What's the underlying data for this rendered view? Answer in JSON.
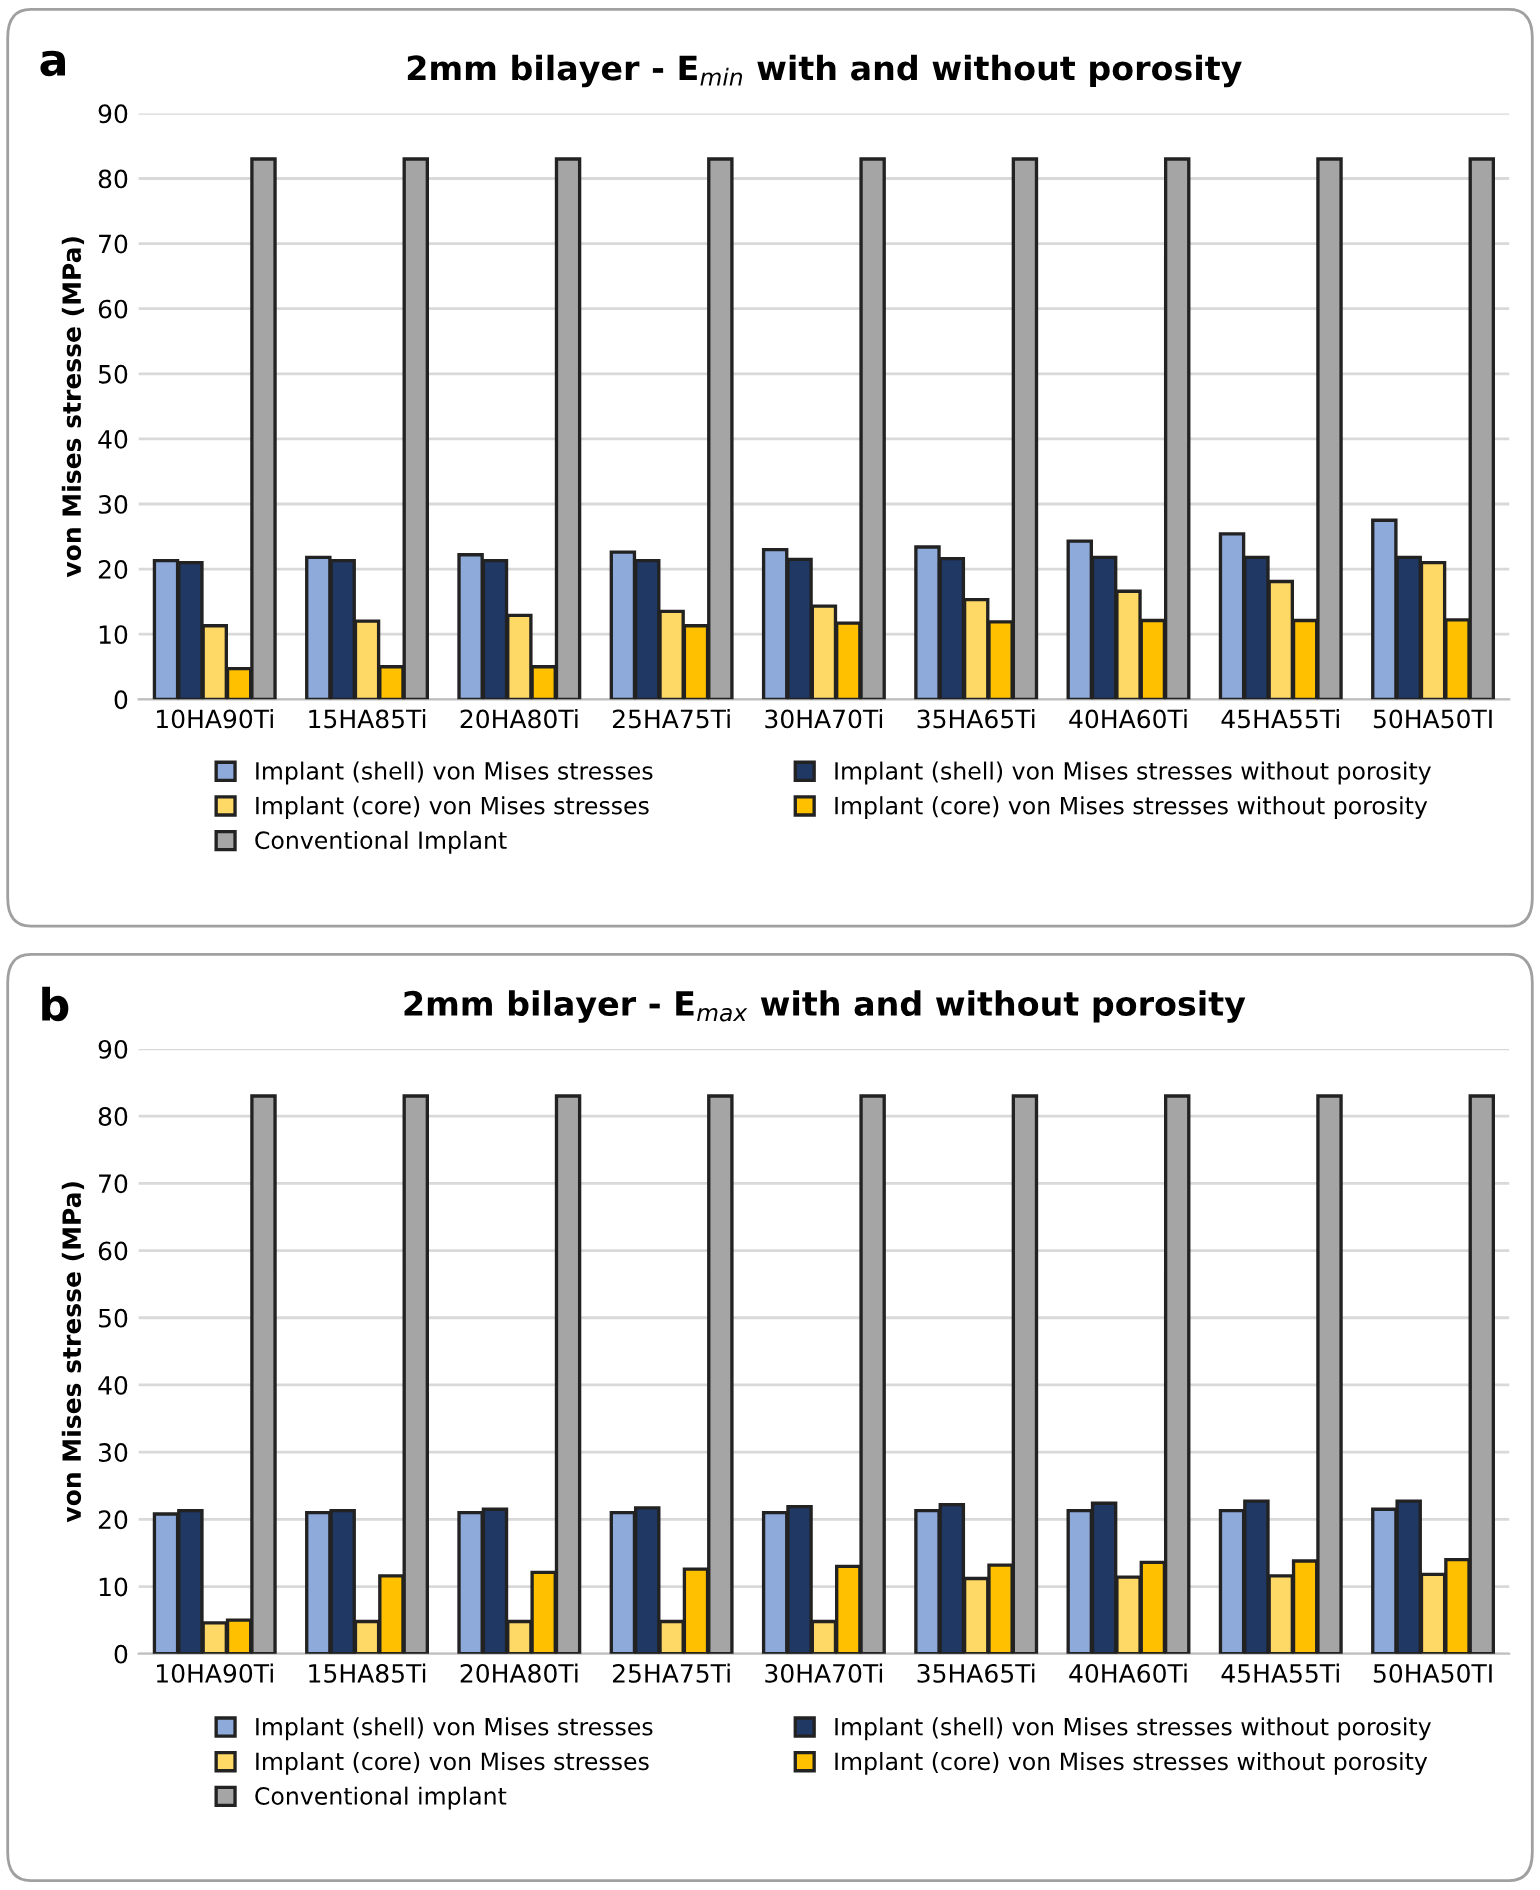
{
  "chart_data": [
    {
      "type": "bar",
      "title": "2mm bilayer - E$_{min}$ with and without porosity",
      "ylabel": "von Mises stresse (MPa)",
      "annotations": [
        "a"
      ],
      "categories": [
        "10HA90Ti",
        "15HA85Ti",
        "20HA80Ti",
        "25HA75Ti",
        "30HA70Ti",
        "35HA65Ti",
        "40HA60Ti",
        "45HA55Ti",
        "50HA50TI"
      ],
      "series": [
        {
          "name": "Implant (shell) von Mises stresses",
          "color": "#8eaadb",
          "values": [
            21.3,
            21.8,
            22.2,
            22.6,
            23.0,
            23.4,
            24.3,
            25.4,
            27.5
          ]
        },
        {
          "name": "Implant (shell) von Mises stresses without porosity",
          "color": "#1f3864",
          "values": [
            21.0,
            21.3,
            21.3,
            21.3,
            21.5,
            21.6,
            21.8,
            21.8,
            21.8
          ]
        },
        {
          "name": "Implant (core) von Mises stresses",
          "color": "#ffd966",
          "values": [
            11.3,
            12.0,
            12.9,
            13.5,
            14.3,
            15.3,
            16.6,
            18.1,
            21.0
          ]
        },
        {
          "name": "Implant (core) von Mises stresses without porosity",
          "color": "#ffc000",
          "values": [
            4.7,
            5.0,
            5.0,
            11.3,
            11.7,
            11.9,
            12.1,
            12.1,
            12.2
          ]
        },
        {
          "name": "Conventional Implant",
          "color": "#a5a5a5",
          "values": [
            83,
            83,
            83,
            83,
            83,
            83,
            83,
            83,
            83
          ]
        }
      ],
      "ylim": [
        0,
        90
      ],
      "yticks": [
        0,
        10,
        20,
        30,
        40,
        50,
        60,
        70,
        80,
        90
      ],
      "grid": "y",
      "legend": "bottom"
    },
    {
      "type": "bar",
      "title": "2mm bilayer - E$_{max}$ with and without porosity",
      "ylabel": "von Mises stresse (MPa)",
      "annotations": [
        "b"
      ],
      "categories": [
        "10HA90Ti",
        "15HA85Ti",
        "20HA80Ti",
        "25HA75Ti",
        "30HA70Ti",
        "35HA65Ti",
        "40HA60Ti",
        "45HA55Ti",
        "50HA50TI"
      ],
      "series": [
        {
          "name": "Implant (shell) von Mises stresses",
          "color": "#8eaadb",
          "values": [
            20.8,
            21.0,
            21.0,
            21.0,
            21.0,
            21.3,
            21.3,
            21.3,
            21.5
          ]
        },
        {
          "name": "Implant (shell) von Mises stresses without porosity",
          "color": "#1f3864",
          "values": [
            21.3,
            21.3,
            21.5,
            21.7,
            21.9,
            22.2,
            22.4,
            22.7,
            22.7
          ]
        },
        {
          "name": "Implant (core) von Mises stresses",
          "color": "#ffd966",
          "values": [
            4.6,
            4.8,
            4.8,
            4.8,
            4.8,
            11.2,
            11.4,
            11.6,
            11.8
          ]
        },
        {
          "name": "Implant (core) von Mises stresses without porosity",
          "color": "#ffc000",
          "values": [
            5.0,
            11.6,
            12.1,
            12.6,
            13.0,
            13.2,
            13.6,
            13.8,
            14.0
          ]
        },
        {
          "name": "Conventional implant",
          "color": "#a5a5a5",
          "values": [
            83,
            83,
            83,
            83,
            83,
            83,
            83,
            83,
            83
          ]
        }
      ],
      "ylim": [
        0,
        90
      ],
      "yticks": [
        0,
        10,
        20,
        30,
        40,
        50,
        60,
        70,
        80,
        90
      ],
      "grid": "y",
      "legend": "bottom"
    }
  ]
}
